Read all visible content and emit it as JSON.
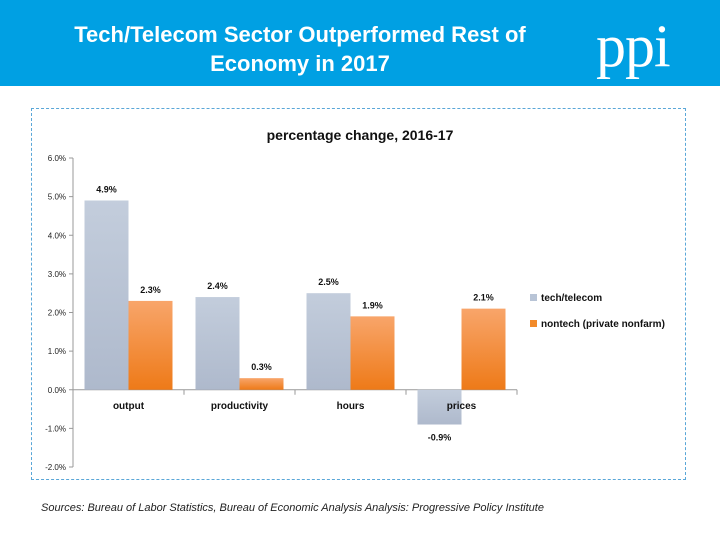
{
  "header": {
    "title_line1": "Tech/Telecom Sector Outperformed Rest of",
    "title_line2": "Economy in 2017",
    "logo_text": "ppi"
  },
  "footer": {
    "source": "Sources: Bureau of Labor Statistics, Bureau of Economic Analysis   Analysis: Progressive Policy Institute"
  },
  "colors": {
    "banner": "#00a0e3",
    "tech": "#b8c4d6",
    "nontech": "#f28a2a"
  },
  "chart_data": {
    "type": "bar",
    "title": "percentage change, 2016-17",
    "categories": [
      "output",
      "productivity",
      "hours",
      "prices"
    ],
    "series": [
      {
        "name": "tech/telecom",
        "values": [
          4.9,
          2.4,
          2.5,
          -0.9
        ],
        "labels": [
          "4.9%",
          "2.4%",
          "2.5%",
          "-0.9%"
        ]
      },
      {
        "name": "nontech (private nonfarm)",
        "values": [
          2.3,
          0.3,
          1.9,
          2.1
        ],
        "labels": [
          "2.3%",
          "0.3%",
          "1.9%",
          "2.1%"
        ]
      }
    ],
    "ylim": [
      -2,
      6
    ],
    "yticks": [
      6,
      5,
      4,
      3,
      2,
      1,
      0,
      -1,
      -2
    ],
    "ytick_labels": [
      "6.0%",
      "5.0%",
      "4.0%",
      "3.0%",
      "2.0%",
      "1.0%",
      "0.0%",
      "-1.0%",
      "-2.0%"
    ],
    "legend_position": "right",
    "grid": false
  }
}
